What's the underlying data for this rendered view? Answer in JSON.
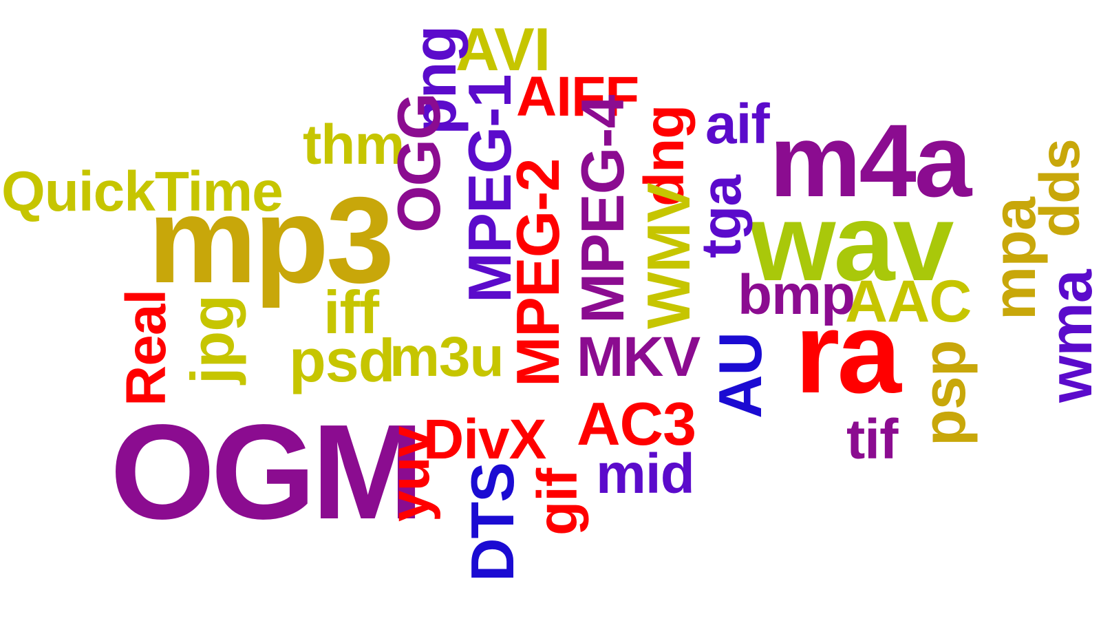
{
  "colors": {
    "yellow_green": "#c6c500",
    "gold": "#c8a70a",
    "red": "#ff0000",
    "purple": "#8b0c90",
    "violet": "#5b0bcb",
    "blue": "#1b0bd2",
    "lime": "#a9c80a"
  },
  "words": {
    "quicktime": "QuickTime",
    "thm": "thm",
    "avi": "AVI",
    "aiff": "AIFF",
    "png": "png",
    "mp3": "mp3",
    "ogg": "OGG",
    "mpeg1": "MPEG-1",
    "mpeg2": "MPEG-2",
    "mpeg4": "MPEG-4",
    "dng": "dng",
    "wmv": "WMV",
    "tga": "tga",
    "aif": "aif",
    "m4a": "m4a",
    "wav": "wav",
    "dds": "dds",
    "mpa": "mpa",
    "wma": "wma",
    "bmp": "bmp",
    "aac": "AAC",
    "ra": "ra",
    "au": "AU",
    "psp": "psp",
    "tif": "tif",
    "real": "Real",
    "jpg": "jpg",
    "iff": "iff",
    "psd": "psd",
    "m3u": "m3u",
    "mkv": "MKV",
    "ac3": "AC3",
    "ogm": "OGM",
    "yuv": "yuv",
    "divx": "DivX",
    "dts": "DTS",
    "gif": "gif",
    "mid": "mid"
  }
}
